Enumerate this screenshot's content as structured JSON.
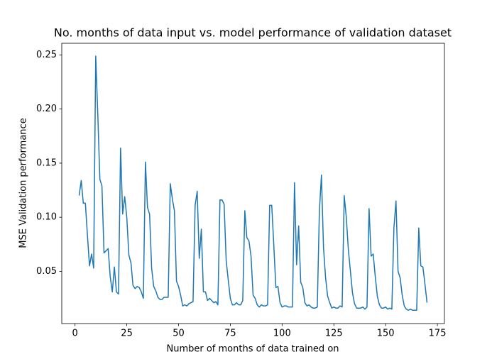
{
  "chart_data": {
    "type": "line",
    "title": "No. months of data input vs. model performance of validation dataset",
    "x_label": "Number of months of data trained on",
    "y_label": "MSE Validation performance",
    "color": "#1f77b4",
    "x": [
      2,
      3,
      4,
      5,
      6,
      7,
      8,
      9,
      10,
      11,
      12,
      13,
      14,
      15,
      16,
      17,
      18,
      19,
      20,
      21,
      22,
      23,
      24,
      25,
      26,
      27,
      28,
      29,
      30,
      31,
      32,
      33,
      34,
      35,
      36,
      37,
      38,
      39,
      40,
      41,
      42,
      43,
      44,
      45,
      46,
      47,
      48,
      49,
      50,
      51,
      52,
      53,
      54,
      55,
      56,
      57,
      58,
      59,
      60,
      61,
      62,
      63,
      64,
      65,
      66,
      67,
      68,
      69,
      70,
      71,
      72,
      73,
      74,
      75,
      76,
      77,
      78,
      79,
      80,
      81,
      82,
      83,
      84,
      85,
      86,
      87,
      88,
      89,
      90,
      91,
      92,
      93,
      94,
      95,
      96,
      97,
      98,
      99,
      100,
      101,
      102,
      103,
      104,
      105,
      106,
      107,
      108,
      109,
      110,
      111,
      112,
      113,
      114,
      115,
      116,
      117,
      118,
      119,
      120,
      121,
      122,
      123,
      124,
      125,
      126,
      127,
      128,
      129,
      130,
      131,
      132,
      133,
      134,
      135,
      136,
      137,
      138,
      139,
      140,
      141,
      142,
      143,
      144,
      145,
      146,
      147,
      148,
      149,
      150,
      151,
      152,
      153,
      154,
      155,
      156,
      157,
      158,
      159,
      160,
      161,
      162,
      163,
      164,
      165,
      166,
      167,
      168,
      169,
      170
    ],
    "values": [
      0.12,
      0.134,
      0.113,
      0.113,
      0.083,
      0.055,
      0.066,
      0.053,
      0.249,
      0.195,
      0.135,
      0.129,
      0.067,
      0.069,
      0.071,
      0.045,
      0.031,
      0.054,
      0.031,
      0.029,
      0.164,
      0.103,
      0.119,
      0.1,
      0.065,
      0.058,
      0.037,
      0.034,
      0.036,
      0.035,
      0.031,
      0.025,
      0.151,
      0.109,
      0.103,
      0.053,
      0.036,
      0.032,
      0.026,
      0.024,
      0.024,
      0.026,
      0.026,
      0.026,
      0.131,
      0.117,
      0.106,
      0.041,
      0.036,
      0.028,
      0.018,
      0.019,
      0.018,
      0.02,
      0.021,
      0.022,
      0.111,
      0.124,
      0.062,
      0.089,
      0.031,
      0.031,
      0.023,
      0.025,
      0.023,
      0.021,
      0.022,
      0.019,
      0.116,
      0.116,
      0.112,
      0.06,
      0.042,
      0.025,
      0.019,
      0.019,
      0.021,
      0.019,
      0.019,
      0.023,
      0.106,
      0.081,
      0.078,
      0.064,
      0.028,
      0.025,
      0.019,
      0.017,
      0.019,
      0.018,
      0.018,
      0.019,
      0.111,
      0.111,
      0.074,
      0.035,
      0.036,
      0.021,
      0.017,
      0.018,
      0.018,
      0.017,
      0.017,
      0.017,
      0.132,
      0.056,
      0.092,
      0.04,
      0.035,
      0.021,
      0.018,
      0.019,
      0.017,
      0.016,
      0.016,
      0.017,
      0.105,
      0.139,
      0.072,
      0.044,
      0.027,
      0.021,
      0.016,
      0.017,
      0.016,
      0.016,
      0.018,
      0.017,
      0.12,
      0.1,
      0.07,
      0.05,
      0.03,
      0.02,
      0.016,
      0.016,
      0.016,
      0.017,
      0.015,
      0.017,
      0.108,
      0.064,
      0.066,
      0.045,
      0.027,
      0.019,
      0.016,
      0.016,
      0.017,
      0.015,
      0.016,
      0.015,
      0.09,
      0.115,
      0.05,
      0.044,
      0.028,
      0.018,
      0.015,
      0.014,
      0.015,
      0.014,
      0.014,
      0.014,
      0.09,
      0.055,
      0.054,
      0.038,
      0.021
    ],
    "xlim": [
      -6.4,
      178.4
    ],
    "xticks": [
      0,
      25,
      50,
      75,
      100,
      125,
      150,
      175
    ],
    "ylim": [
      0.0017,
      0.2608
    ],
    "yticks": [
      0.05,
      {
        "value": 0.1,
        "label": "0.10"
      },
      0.15,
      {
        "value": 0.2,
        "label": "0.20"
      },
      0.25
    ],
    "grid": false
  }
}
